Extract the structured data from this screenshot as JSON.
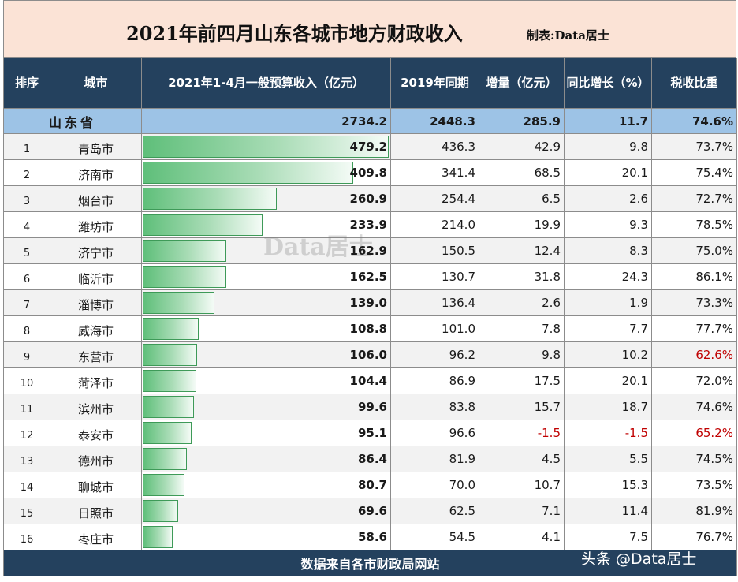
{
  "title": "2021年前四月山东各城市地方财政收入",
  "maker": "制表:Data居士",
  "headers": {
    "rank": "排序",
    "city": "城市",
    "revenue": "2021年1-4月一般预算收入（亿元）",
    "prev": "2019年同期",
    "increase": "增量（亿元）",
    "growth": "同比增长（%）",
    "tax_ratio": "税收比重"
  },
  "province": {
    "name": "山东省",
    "revenue": "2734.2",
    "prev": "2448.3",
    "increase": "285.9",
    "growth": "11.7",
    "tax_ratio": "74.6%"
  },
  "footer": "数据来自各市财政局网站",
  "watermark": "Data居士",
  "brand": "头条 @Data居士",
  "colors": {
    "header_bg": "#24415e",
    "province_bg": "#9dc3e6",
    "title_bg": "#fbe3d6",
    "bar_green": "#5fbf7a",
    "negative_red": "#c00000"
  },
  "chart_data": {
    "type": "table",
    "columns": [
      "排序",
      "城市",
      "2021年1-4月一般预算收入（亿元）",
      "2019年同期",
      "增量（亿元）",
      "同比增长（%）",
      "税收比重"
    ],
    "bar_column": "2021年1-4月一般预算收入（亿元）",
    "bar_max": 479.2,
    "rows": [
      {
        "rank": "1",
        "city": "青岛市",
        "revenue": "479.2",
        "prev": "436.3",
        "increase": "42.9",
        "growth": "9.8",
        "tax_ratio": "73.7%"
      },
      {
        "rank": "2",
        "city": "济南市",
        "revenue": "409.8",
        "prev": "341.4",
        "increase": "68.5",
        "growth": "20.1",
        "tax_ratio": "75.4%"
      },
      {
        "rank": "3",
        "city": "烟台市",
        "revenue": "260.9",
        "prev": "254.4",
        "increase": "6.5",
        "growth": "2.6",
        "tax_ratio": "72.7%"
      },
      {
        "rank": "4",
        "city": "潍坊市",
        "revenue": "233.9",
        "prev": "214.0",
        "increase": "19.9",
        "growth": "9.3",
        "tax_ratio": "78.5%"
      },
      {
        "rank": "5",
        "city": "济宁市",
        "revenue": "162.9",
        "prev": "150.5",
        "increase": "12.4",
        "growth": "8.3",
        "tax_ratio": "75.0%"
      },
      {
        "rank": "6",
        "city": "临沂市",
        "revenue": "162.5",
        "prev": "130.7",
        "increase": "31.8",
        "growth": "24.3",
        "tax_ratio": "86.1%"
      },
      {
        "rank": "7",
        "city": "淄博市",
        "revenue": "139.0",
        "prev": "136.4",
        "increase": "2.6",
        "growth": "1.9",
        "tax_ratio": "73.3%"
      },
      {
        "rank": "8",
        "city": "威海市",
        "revenue": "108.8",
        "prev": "101.0",
        "increase": "7.8",
        "growth": "7.7",
        "tax_ratio": "77.7%"
      },
      {
        "rank": "9",
        "city": "东营市",
        "revenue": "106.0",
        "prev": "96.2",
        "increase": "9.8",
        "growth": "10.2",
        "tax_ratio": "62.6%",
        "tax_red": true
      },
      {
        "rank": "10",
        "city": "菏泽市",
        "revenue": "104.4",
        "prev": "86.9",
        "increase": "17.5",
        "growth": "20.1",
        "tax_ratio": "72.0%"
      },
      {
        "rank": "11",
        "city": "滨州市",
        "revenue": "99.6",
        "prev": "83.8",
        "increase": "15.7",
        "growth": "18.7",
        "tax_ratio": "74.6%"
      },
      {
        "rank": "12",
        "city": "泰安市",
        "revenue": "95.1",
        "prev": "96.6",
        "increase": "-1.5",
        "growth": "-1.5",
        "tax_ratio": "65.2%",
        "tax_red": true,
        "neg": true
      },
      {
        "rank": "13",
        "city": "德州市",
        "revenue": "86.4",
        "prev": "81.9",
        "increase": "4.5",
        "growth": "5.5",
        "tax_ratio": "74.5%"
      },
      {
        "rank": "14",
        "city": "聊城市",
        "revenue": "80.7",
        "prev": "70.0",
        "increase": "10.7",
        "growth": "15.3",
        "tax_ratio": "73.5%"
      },
      {
        "rank": "15",
        "city": "日照市",
        "revenue": "69.6",
        "prev": "62.5",
        "increase": "7.1",
        "growth": "11.4",
        "tax_ratio": "81.9%"
      },
      {
        "rank": "16",
        "city": "枣庄市",
        "revenue": "58.6",
        "prev": "54.5",
        "increase": "4.1",
        "growth": "7.5",
        "tax_ratio": "76.7%"
      }
    ]
  }
}
